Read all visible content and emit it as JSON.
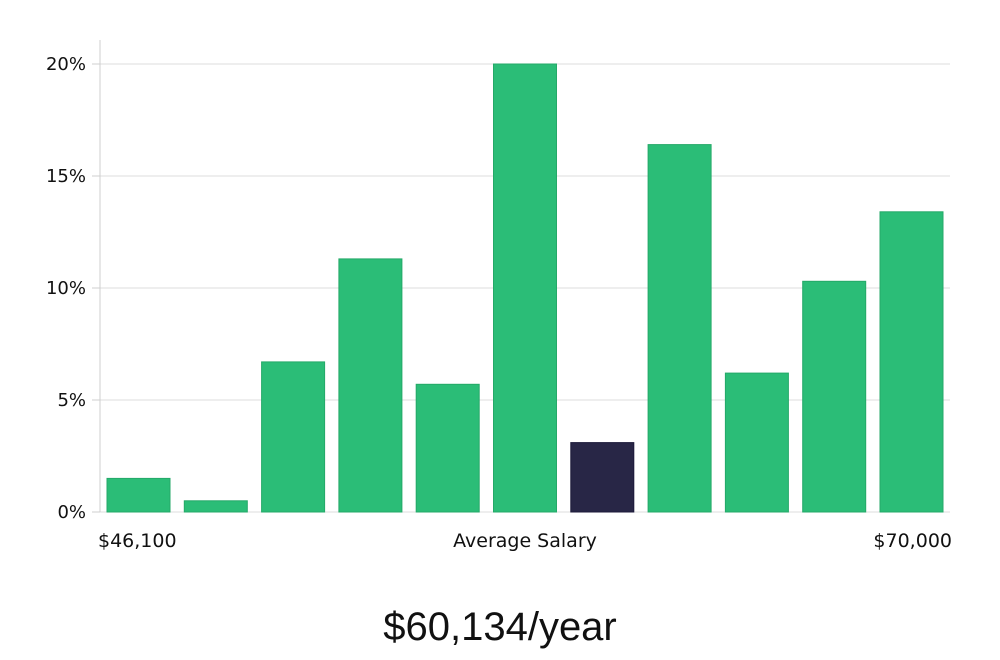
{
  "chart_data": {
    "type": "bar",
    "ylabel": "",
    "xlabel": "Average Salary",
    "x_start_label": "$46,100",
    "x_end_label": "$70,000",
    "ylim": [
      0,
      20
    ],
    "yticks": [
      0,
      5,
      10,
      15,
      20
    ],
    "ytick_labels": [
      "0%",
      "5%",
      "10%",
      "15%",
      "20%"
    ],
    "values": [
      1.5,
      0.5,
      6.7,
      11.3,
      5.7,
      20.0,
      3.1,
      16.4,
      6.2,
      10.3,
      13.4
    ],
    "highlight_index": 6,
    "colors": {
      "bar": "#2bbd77",
      "highlight": "#282646"
    }
  },
  "salary_summary": "$60,134/year"
}
